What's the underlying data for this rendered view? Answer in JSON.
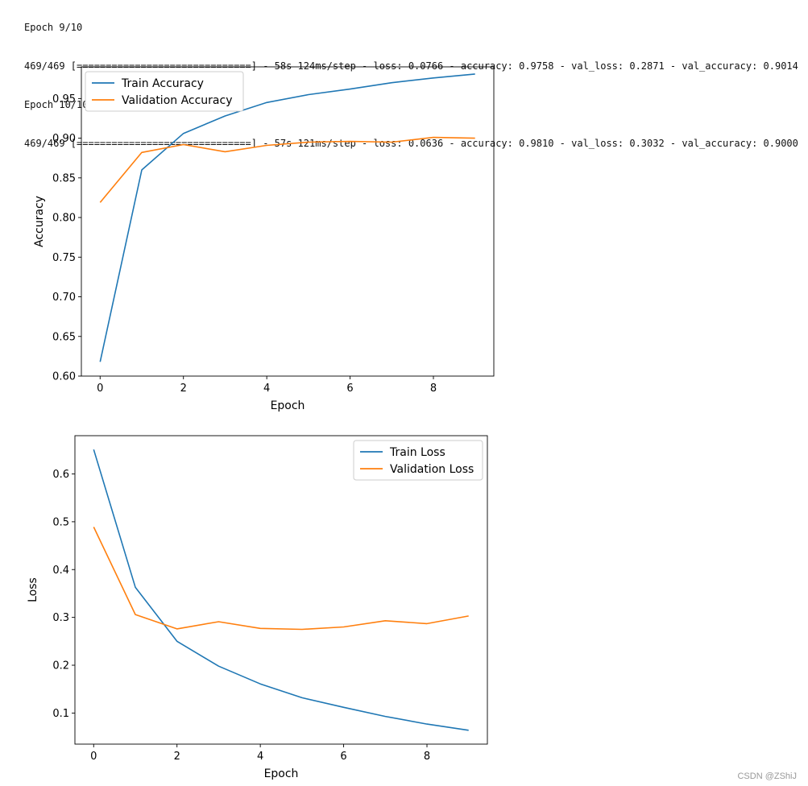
{
  "console": {
    "lines": [
      "Epoch 9/10",
      "469/469 [==============================] - 58s 124ms/step - loss: 0.0766 - accuracy: 0.9758 - val_loss: 0.2871 - val_accuracy: 0.9014",
      "Epoch 10/10",
      "469/469 [==============================] - 57s 121ms/step - loss: 0.0636 - accuracy: 0.9810 - val_loss: 0.3032 - val_accuracy: 0.9000"
    ]
  },
  "colors": {
    "series1": "#1f77b4",
    "series2": "#ff7f0e"
  },
  "chart_data": [
    {
      "type": "line",
      "title": "",
      "xlabel": "Epoch",
      "ylabel": "Accuracy",
      "x": [
        0,
        1,
        2,
        3,
        4,
        5,
        6,
        7,
        8,
        9
      ],
      "xlim": [
        -0.45,
        9.45
      ],
      "ylim": [
        0.6,
        0.99
      ],
      "xticks": [
        0,
        2,
        4,
        6,
        8
      ],
      "yticks": [
        0.6,
        0.65,
        0.7,
        0.75,
        0.8,
        0.85,
        0.9,
        0.95
      ],
      "ytick_labels": [
        "0.60",
        "0.65",
        "0.70",
        "0.75",
        "0.80",
        "0.85",
        "0.90",
        "0.95"
      ],
      "grid": false,
      "legend": "upper-left",
      "series": [
        {
          "name": "Train Accuracy",
          "values": [
            0.618,
            0.86,
            0.906,
            0.928,
            0.945,
            0.955,
            0.962,
            0.97,
            0.976,
            0.981
          ]
        },
        {
          "name": "Validation Accuracy",
          "values": [
            0.819,
            0.882,
            0.892,
            0.883,
            0.891,
            0.895,
            0.896,
            0.895,
            0.901,
            0.9
          ]
        }
      ]
    },
    {
      "type": "line",
      "title": "",
      "xlabel": "Epoch",
      "ylabel": "Loss",
      "x": [
        0,
        1,
        2,
        3,
        4,
        5,
        6,
        7,
        8,
        9
      ],
      "xlim": [
        -0.45,
        9.45
      ],
      "ylim": [
        0.035,
        0.68
      ],
      "xticks": [
        0,
        2,
        4,
        6,
        8
      ],
      "yticks": [
        0.1,
        0.2,
        0.3,
        0.4,
        0.5,
        0.6
      ],
      "ytick_labels": [
        "0.1",
        "0.2",
        "0.3",
        "0.4",
        "0.5",
        "0.6"
      ],
      "grid": false,
      "legend": "upper-right",
      "series": [
        {
          "name": "Train Loss",
          "values": [
            0.651,
            0.363,
            0.25,
            0.198,
            0.161,
            0.132,
            0.112,
            0.093,
            0.077,
            0.064
          ]
        },
        {
          "name": "Validation Loss",
          "values": [
            0.489,
            0.306,
            0.276,
            0.291,
            0.277,
            0.275,
            0.28,
            0.293,
            0.287,
            0.303
          ]
        }
      ]
    }
  ],
  "watermark": "CSDN @ZShiJ"
}
